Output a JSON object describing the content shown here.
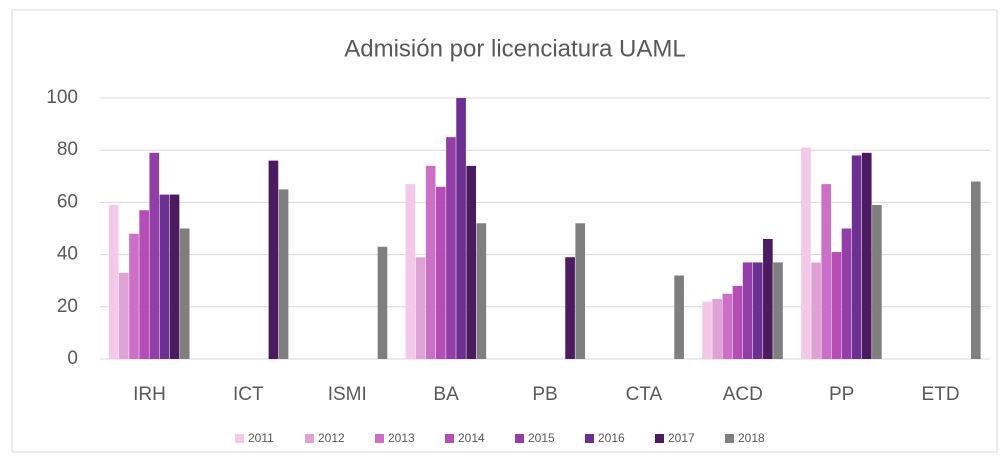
{
  "chart_data": {
    "type": "bar",
    "title": "Admisión por licenciatura UAML",
    "categories": [
      "IRH",
      "ICT",
      "ISMI",
      "BA",
      "PB",
      "CTA",
      "ACD",
      "PP",
      "ETD"
    ],
    "series": [
      {
        "name": "2011",
        "color": "#f3c8e8",
        "values": [
          59,
          null,
          null,
          67,
          null,
          null,
          22,
          81,
          null
        ]
      },
      {
        "name": "2012",
        "color": "#dea2d5",
        "values": [
          33,
          null,
          null,
          39,
          null,
          null,
          23,
          37,
          null
        ]
      },
      {
        "name": "2013",
        "color": "#cc6fc6",
        "values": [
          48,
          null,
          null,
          74,
          null,
          null,
          25,
          67,
          null
        ]
      },
      {
        "name": "2014",
        "color": "#b64db6",
        "values": [
          57,
          null,
          null,
          66,
          null,
          null,
          28,
          41,
          null
        ]
      },
      {
        "name": "2015",
        "color": "#933da9",
        "values": [
          79,
          null,
          null,
          85,
          null,
          null,
          37,
          50,
          null
        ]
      },
      {
        "name": "2016",
        "color": "#6c2f92",
        "values": [
          63,
          null,
          null,
          100,
          null,
          null,
          37,
          78,
          null
        ]
      },
      {
        "name": "2017",
        "color": "#4b1a5f",
        "values": [
          63,
          76,
          null,
          74,
          39,
          null,
          46,
          79,
          null
        ]
      },
      {
        "name": "2018",
        "color": "#7f7f7f",
        "values": [
          50,
          65,
          43,
          52,
          52,
          32,
          37,
          59,
          68
        ]
      }
    ],
    "ylim": [
      0,
      100
    ],
    "yticks": [
      0,
      20,
      40,
      60,
      80,
      100
    ],
    "grid": true
  }
}
